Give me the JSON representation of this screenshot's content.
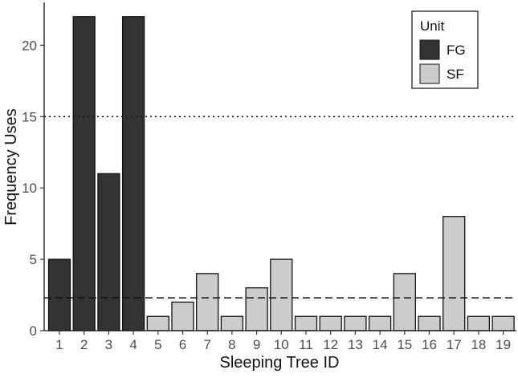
{
  "chart_data": {
    "type": "bar",
    "categories": [
      "1",
      "2",
      "3",
      "4",
      "5",
      "6",
      "7",
      "8",
      "9",
      "10",
      "11",
      "12",
      "13",
      "14",
      "15",
      "16",
      "17",
      "18",
      "19"
    ],
    "values": [
      5,
      22,
      11,
      22,
      1,
      2,
      4,
      1,
      3,
      5,
      1,
      1,
      1,
      1,
      4,
      1,
      8,
      1,
      1
    ],
    "groups": [
      "FG",
      "FG",
      "FG",
      "FG",
      "SF",
      "SF",
      "SF",
      "SF",
      "SF",
      "SF",
      "SF",
      "SF",
      "SF",
      "SF",
      "SF",
      "SF",
      "SF",
      "SF",
      "SF"
    ],
    "legend": {
      "title": "Unit",
      "entries": [
        {
          "name": "FG",
          "color": "#333333"
        },
        {
          "name": "SF",
          "color": "#cccccc"
        }
      ],
      "placement": "top-right"
    },
    "reference_lines": [
      {
        "value": 15,
        "style": "dotted"
      },
      {
        "value": 2.3,
        "style": "dashed"
      }
    ],
    "xlabel": "Sleeping Tree ID",
    "ylabel": "Frequency Uses",
    "ylim": [
      0,
      23
    ],
    "yticks": [
      0,
      5,
      10,
      15,
      20
    ],
    "grid": false
  }
}
